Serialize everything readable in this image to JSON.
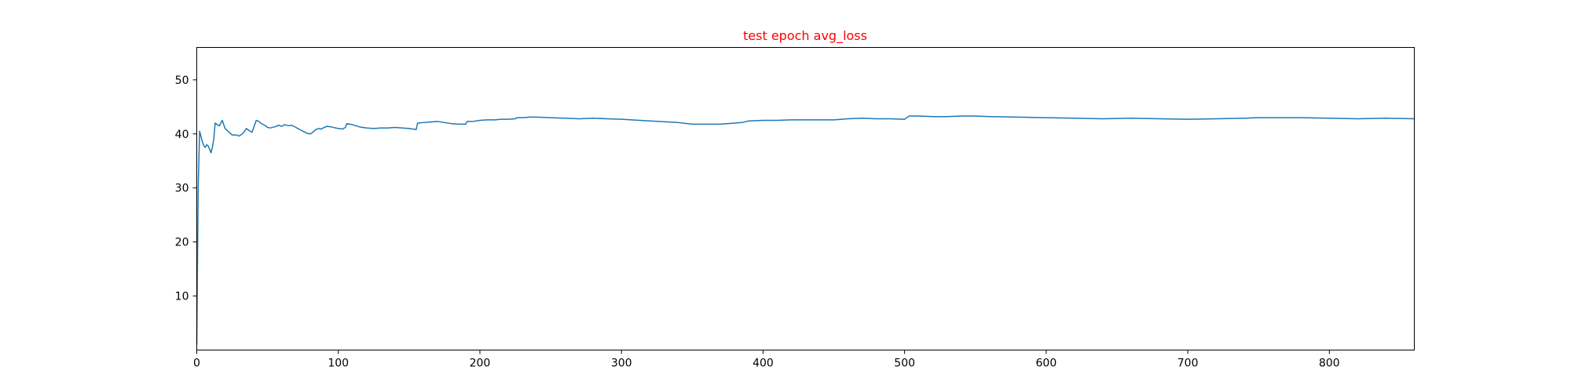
{
  "chart_data": {
    "type": "line",
    "title": "test epoch avg_loss",
    "title_color": "#ff0000",
    "line_color": "#1f77b4",
    "xlabel": "",
    "ylabel": "",
    "xlim": [
      0,
      860
    ],
    "ylim": [
      0,
      56
    ],
    "grid": false,
    "xticks": [
      0,
      100,
      200,
      300,
      400,
      500,
      600,
      700,
      800
    ],
    "yticks": [
      10,
      20,
      30,
      40,
      50
    ],
    "series": [
      {
        "x": [
          0,
          1,
          2,
          3,
          4,
          5,
          6,
          7,
          8,
          9,
          10,
          11,
          12,
          13,
          14,
          15,
          16,
          17,
          18,
          20,
          22,
          25,
          28,
          30,
          33,
          35,
          37,
          39,
          40,
          42,
          44,
          45,
          48,
          50,
          52,
          55,
          58,
          60,
          62,
          65,
          67,
          70,
          72,
          75,
          78,
          80,
          82,
          84,
          86,
          88,
          90,
          92,
          95,
          98,
          100,
          103,
          105,
          106,
          108,
          110,
          115,
          120,
          125,
          130,
          135,
          140,
          145,
          150,
          155,
          156,
          160,
          165,
          170,
          175,
          180,
          185,
          190,
          191,
          195,
          200,
          205,
          210,
          215,
          220,
          225,
          226,
          230,
          235,
          240,
          250,
          260,
          270,
          280,
          290,
          300,
          320,
          340,
          350,
          360,
          370,
          380,
          385,
          390,
          400,
          410,
          420,
          430,
          440,
          450,
          460,
          470,
          480,
          490,
          500,
          503,
          510,
          520,
          530,
          540,
          550,
          560,
          580,
          600,
          620,
          640,
          660,
          680,
          700,
          720,
          740,
          750,
          760,
          780,
          800,
          820,
          840,
          860
        ],
        "y": [
          1,
          30,
          40.5,
          39.5,
          38.5,
          37.8,
          37.5,
          38,
          37.8,
          37.2,
          36.5,
          37.5,
          39,
          42,
          41.8,
          41.6,
          41.5,
          42,
          42.5,
          41,
          40.5,
          39.8,
          39.8,
          39.6,
          40.2,
          41,
          40.6,
          40.3,
          41,
          42.5,
          42.3,
          42,
          41.6,
          41.2,
          41.1,
          41.3,
          41.6,
          41.4,
          41.7,
          41.5,
          41.6,
          41.2,
          40.9,
          40.5,
          40.1,
          40,
          40.3,
          40.8,
          41,
          40.9,
          41.2,
          41.4,
          41.3,
          41.1,
          41,
          40.9,
          41.2,
          41.9,
          41.8,
          41.7,
          41.3,
          41.1,
          41,
          41.1,
          41.1,
          41.2,
          41.1,
          41,
          40.8,
          42,
          42.1,
          42.2,
          42.3,
          42.1,
          41.9,
          41.8,
          41.8,
          42.3,
          42.3,
          42.5,
          42.6,
          42.6,
          42.7,
          42.7,
          42.8,
          43,
          43,
          43.1,
          43.1,
          43,
          42.9,
          42.8,
          42.9,
          42.8,
          42.7,
          42.4,
          42.1,
          41.8,
          41.8,
          41.8,
          42,
          42.1,
          42.4,
          42.5,
          42.5,
          42.6,
          42.6,
          42.6,
          42.6,
          42.8,
          42.9,
          42.8,
          42.8,
          42.7,
          43.3,
          43.3,
          43.2,
          43.2,
          43.3,
          43.3,
          43.2,
          43.1,
          43,
          42.9,
          42.8,
          42.9,
          42.8,
          42.7,
          42.8,
          42.9,
          43,
          43,
          43,
          42.9,
          42.8,
          42.9,
          42.8
        ]
      }
    ]
  }
}
